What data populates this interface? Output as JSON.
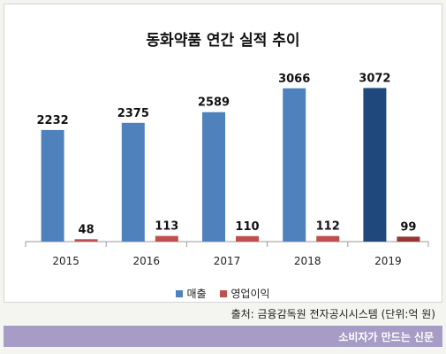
{
  "chart_data": {
    "type": "bar",
    "title": "동화약품 연간 실적 추이",
    "categories": [
      "2015",
      "2016",
      "2017",
      "2018",
      "2019"
    ],
    "series": [
      {
        "name": "매출",
        "values": [
          2232,
          2375,
          2589,
          3066,
          3072
        ],
        "color": "#4f81bd",
        "highlight_color": "#1f497d"
      },
      {
        "name": "영업이익",
        "values": [
          48,
          113,
          110,
          112,
          99
        ],
        "color": "#c0504d",
        "highlight_color": "#953735"
      }
    ],
    "highlight_index": 4,
    "legend_position": "bottom",
    "grid": false
  },
  "source": "출처: 금융감독원 전자공시시스템 (단위:억 원)",
  "footer": {
    "brand": "소비자가 만드는 신문"
  }
}
